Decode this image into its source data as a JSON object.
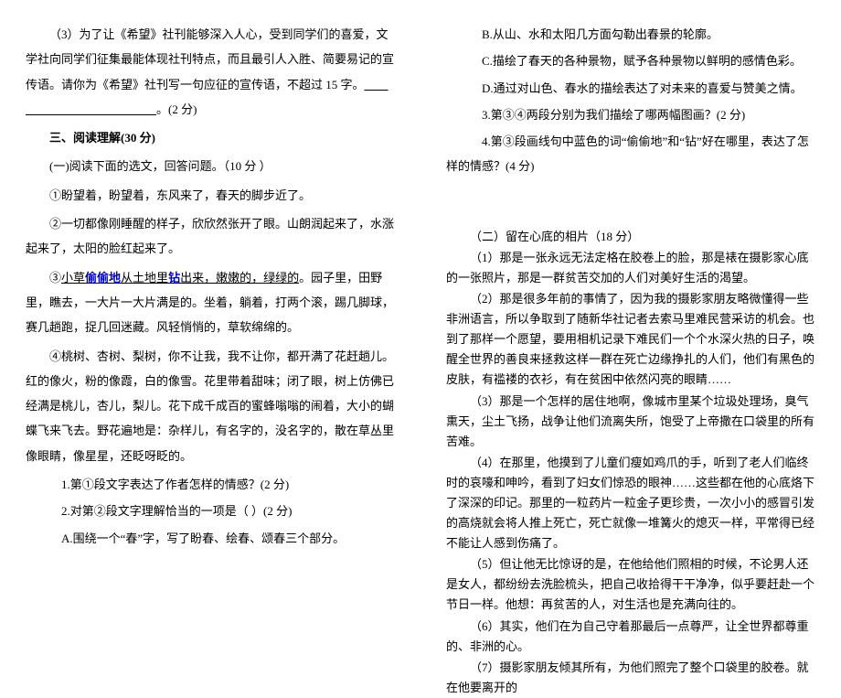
{
  "left": {
    "p1": "（3）为了让《希望》社刊能够深入人心，受到同学们的喜爱，文学社向同学们征集最能体现社刊特点，而且最引人入胜、简要易记的宣传语。请你为《希望》社刊写一句应征的宣传语，不超过 15 字。",
    "p1_blank": "＿＿＿＿＿＿＿＿＿＿＿＿＿",
    "p1_tail": "。(2 分)",
    "section3": "三、阅读理解(30 分)",
    "sub1": "(一)阅读下面的选文，回答问题。（10 分 ）",
    "a1": "①盼望着，盼望着，东风来了，春天的脚步近了。",
    "a2": "②一切都像刚睡醒的样子，欣欣然张开了眼。山朗润起来了，水涨起来了，太阳的脸红起来了。",
    "a3_pre": "③",
    "a3_u": "小草",
    "a3_blue1": "偷偷地",
    "a3_mid": "从土地里",
    "a3_blue2": "钻",
    "a3_post": "出来，嫩嫩的，绿绿的",
    "a3_tail": "。园子里，田野里，瞧去，一大片一大片满是的。坐着，躺着，打两个滚，踢几脚球，赛几趟跑，捉几回迷藏。风轻悄悄的，草软绵绵的。",
    "a4": "④桃树、杏树、梨树，你不让我，我不让你，都开满了花赶趟儿。红的像火，粉的像霞，白的像雪。花里带着甜味；闭了眼，树上仿佛已经满是桃儿，杏儿，梨儿。花下成千成百的蜜蜂嗡嗡的闹着，大小的蝴蝶飞来飞去。野花遍地是：杂样儿，有名字的，没名字的，散在草丛里像眼睛，像星星，还眨呀眨的。",
    "q1": "1.第①段文字表达了作者怎样的情感？(2 分)",
    "q2": "2.对第②段文字理解恰当的一项是（ ）(2 分)",
    "optA": "A.围绕一个“春”字，写了盼春、绘春、颂春三个部分。"
  },
  "right": {
    "optB": "B.从山、水和太阳几方面勾勒出春景的轮廓。",
    "optC": "C.描绘了春天的各种景物，赋予各种景物以鲜明的感情色彩。",
    "optD": "D.通过对山色、春水的描绘表达了对未来的喜爱与赞美之情。",
    "q3": "3.第③④两段分别为我们描绘了哪两幅图画？(2 分)",
    "q4": "4.第③段画线句中蓝色的词“偷偷地”和“钻”好在哪里，表达了怎样的情感？(4 分)",
    "sub2": "（二）留在心底的相片（18 分）",
    "b1": "（1）那是一张永远无法定格在胶卷上的脸，那是裱在摄影家心底的一张照片，那是一群贫苦交加的人们对美好生活的渴望。",
    "b2": "（2）那是很多年前的事情了，因为我的摄影家朋友略微懂得一些非洲语言，所以争取到了随新华社记者去索马里难民营采访的机会。也到了那样一个愿望，要用相机记录下难民们一个个水深火热的日子，唤醒全世界的善良来拯救这样一群在死亡边缘挣扎的人们，他们有黑色的皮肤，有褴褛的衣衫，有在贫困中依然闪亮的眼睛……",
    "b3": "（3）那是一个怎样的居住地啊，像城市里某个垃圾处理场，臭气熏天，尘土飞扬，战争让他们流离失所，饱受了上帝撒在口袋里的所有苦难。",
    "b4": "（4）在那里，他摸到了儿童们瘦如鸡爪的手，听到了老人们临终时的哀嚎和呻吟，看到了妇女们惊恐的眼神……这些都在他的心底烙下了深深的印记。那里的一粒药片一粒金子更珍贵，一次小小的感冒引发的高烧就会将人推上死亡，死亡就像一堆篝火的熄灭一样，平常得已经不能让人感到伤痛了。",
    "b5": "（5）但让他无比惊讶的是，在他给他们照相的时候，不论男人还是女人，都纷纷去洗脸梳头，把自己收拾得干干净净，似乎要赶赴一个节日一样。他想：再贫苦的人，对生活也是充满向往的。",
    "b6": "（6）其实，他们在为自己守着那最后一点尊严，让全世界都尊重的、非洲的心。",
    "b7": "（7）摄影家朋友倾其所有，为他们照完了整个口袋里的胶卷。就在他要离开的"
  }
}
